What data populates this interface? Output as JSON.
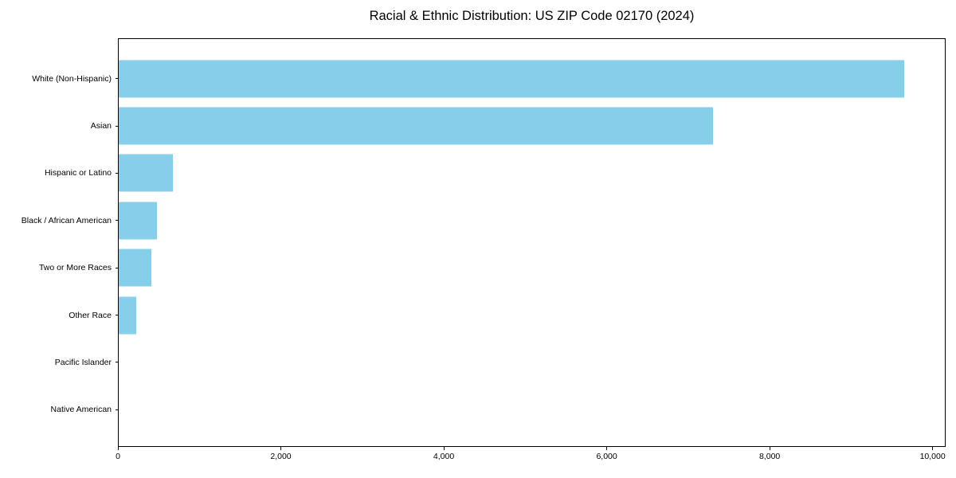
{
  "title": "Racial & Ethnic Distribution: US ZIP Code 02170 (2024)",
  "colors": {
    "bar": "#87CEEB",
    "axis": "#000000",
    "text": "#000000",
    "background": "#ffffff"
  },
  "chart_data": {
    "type": "bar",
    "orientation": "horizontal",
    "title": "Racial & Ethnic Distribution: US ZIP Code 02170 (2024)",
    "categories": [
      "White (Non-Hispanic)",
      "Asian",
      "Hispanic or Latino",
      "Black / African American",
      "Two or More Races",
      "Other Race",
      "Pacific Islander",
      "Native American"
    ],
    "values": [
      9660,
      7310,
      670,
      470,
      400,
      215,
      0,
      0
    ],
    "xlabel": "",
    "ylabel": "",
    "xlim": [
      0,
      10160
    ],
    "x_tick_values": [
      0,
      2000,
      4000,
      6000,
      8000,
      10000
    ],
    "x_tick_labels": [
      "0",
      "2,000",
      "4,000",
      "6,000",
      "8,000",
      "10,000"
    ],
    "grid": false,
    "legend": "none",
    "bar_color": "#87CEEB"
  }
}
